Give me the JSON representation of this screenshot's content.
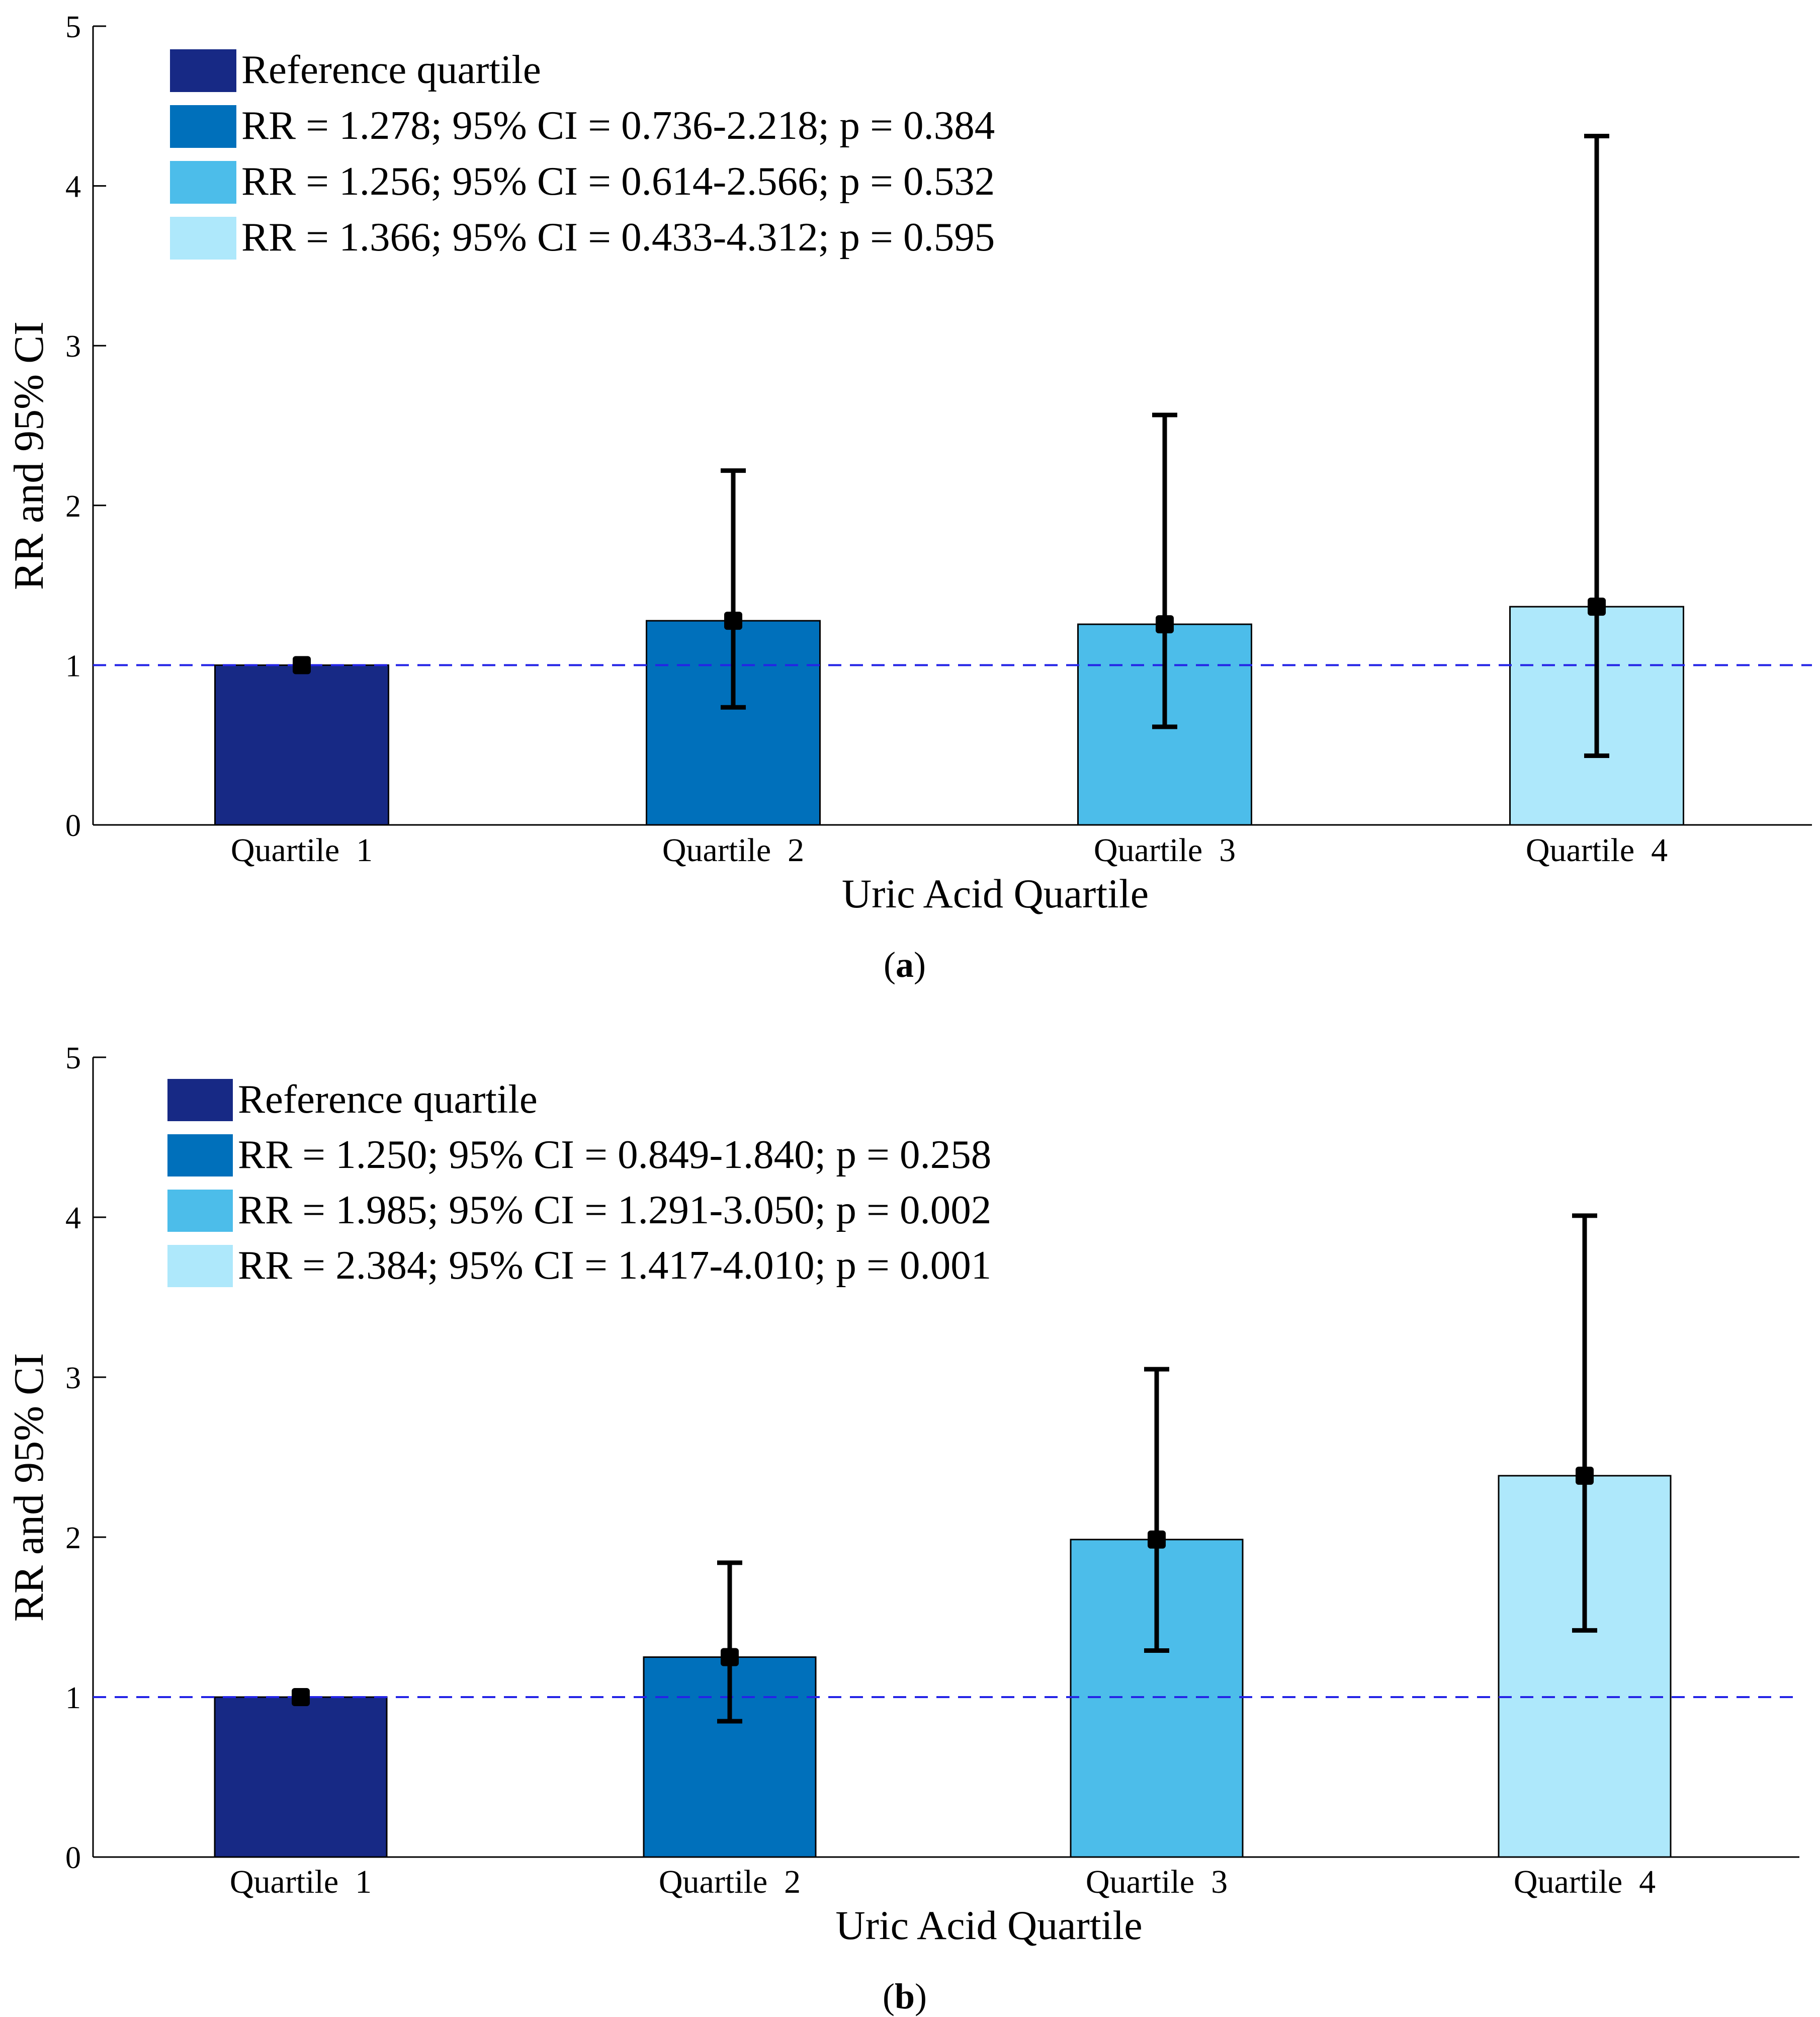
{
  "chart_data": [
    {
      "type": "bar",
      "panel_label": "a",
      "categories": [
        "Quartile  1",
        "Quartile  2",
        "Quartile  3",
        "Quartile  4"
      ],
      "values": [
        1.0,
        1.278,
        1.256,
        1.366
      ],
      "ci_lower": [
        1.0,
        0.736,
        0.614,
        0.433
      ],
      "ci_upper": [
        1.0,
        2.218,
        2.566,
        4.312
      ],
      "colors": [
        "#172985",
        "#0070BB",
        "#4CBDEA",
        "#AEE8FB"
      ],
      "xlabel": "Uric Acid Quartile",
      "ylabel": "RR and 95% CI",
      "ylim": [
        0,
        5
      ],
      "yticks": [
        "0",
        "1",
        "2",
        "3",
        "4",
        "5"
      ],
      "reference_line": 1,
      "reference_line_color": "#2424E6",
      "legend_position": "top-left",
      "legend": [
        "Reference quartile",
        "RR = 1.278; 95% CI = 0.736-2.218; p = 0.384",
        "RR = 1.256; 95% CI = 0.614-2.566; p = 0.532",
        "RR = 1.366; 95% CI = 0.433-4.312; p = 0.595"
      ]
    },
    {
      "type": "bar",
      "panel_label": "b",
      "categories": [
        "Quartile  1",
        "Quartile  2",
        "Quartile  3",
        "Quartile  4"
      ],
      "values": [
        1.0,
        1.25,
        1.985,
        2.384
      ],
      "ci_lower": [
        1.0,
        0.849,
        1.291,
        1.417
      ],
      "ci_upper": [
        1.0,
        1.84,
        3.05,
        4.01
      ],
      "colors": [
        "#172985",
        "#0070BB",
        "#4CBDEA",
        "#AEE8FB"
      ],
      "xlabel": "Uric Acid Quartile",
      "ylabel": "RR and 95% CI",
      "ylim": [
        0,
        5
      ],
      "yticks": [
        "0",
        "1",
        "2",
        "3",
        "4",
        "5"
      ],
      "reference_line": 1,
      "reference_line_color": "#2424E6",
      "legend_position": "top-left",
      "legend": [
        "Reference quartile",
        "RR = 1.250; 95% CI = 0.849-1.840; p = 0.258",
        "RR = 1.985; 95% CI = 1.291-3.050; p = 0.002",
        "RR = 2.384; 95% CI = 1.417-4.010; p = 0.001"
      ]
    }
  ]
}
